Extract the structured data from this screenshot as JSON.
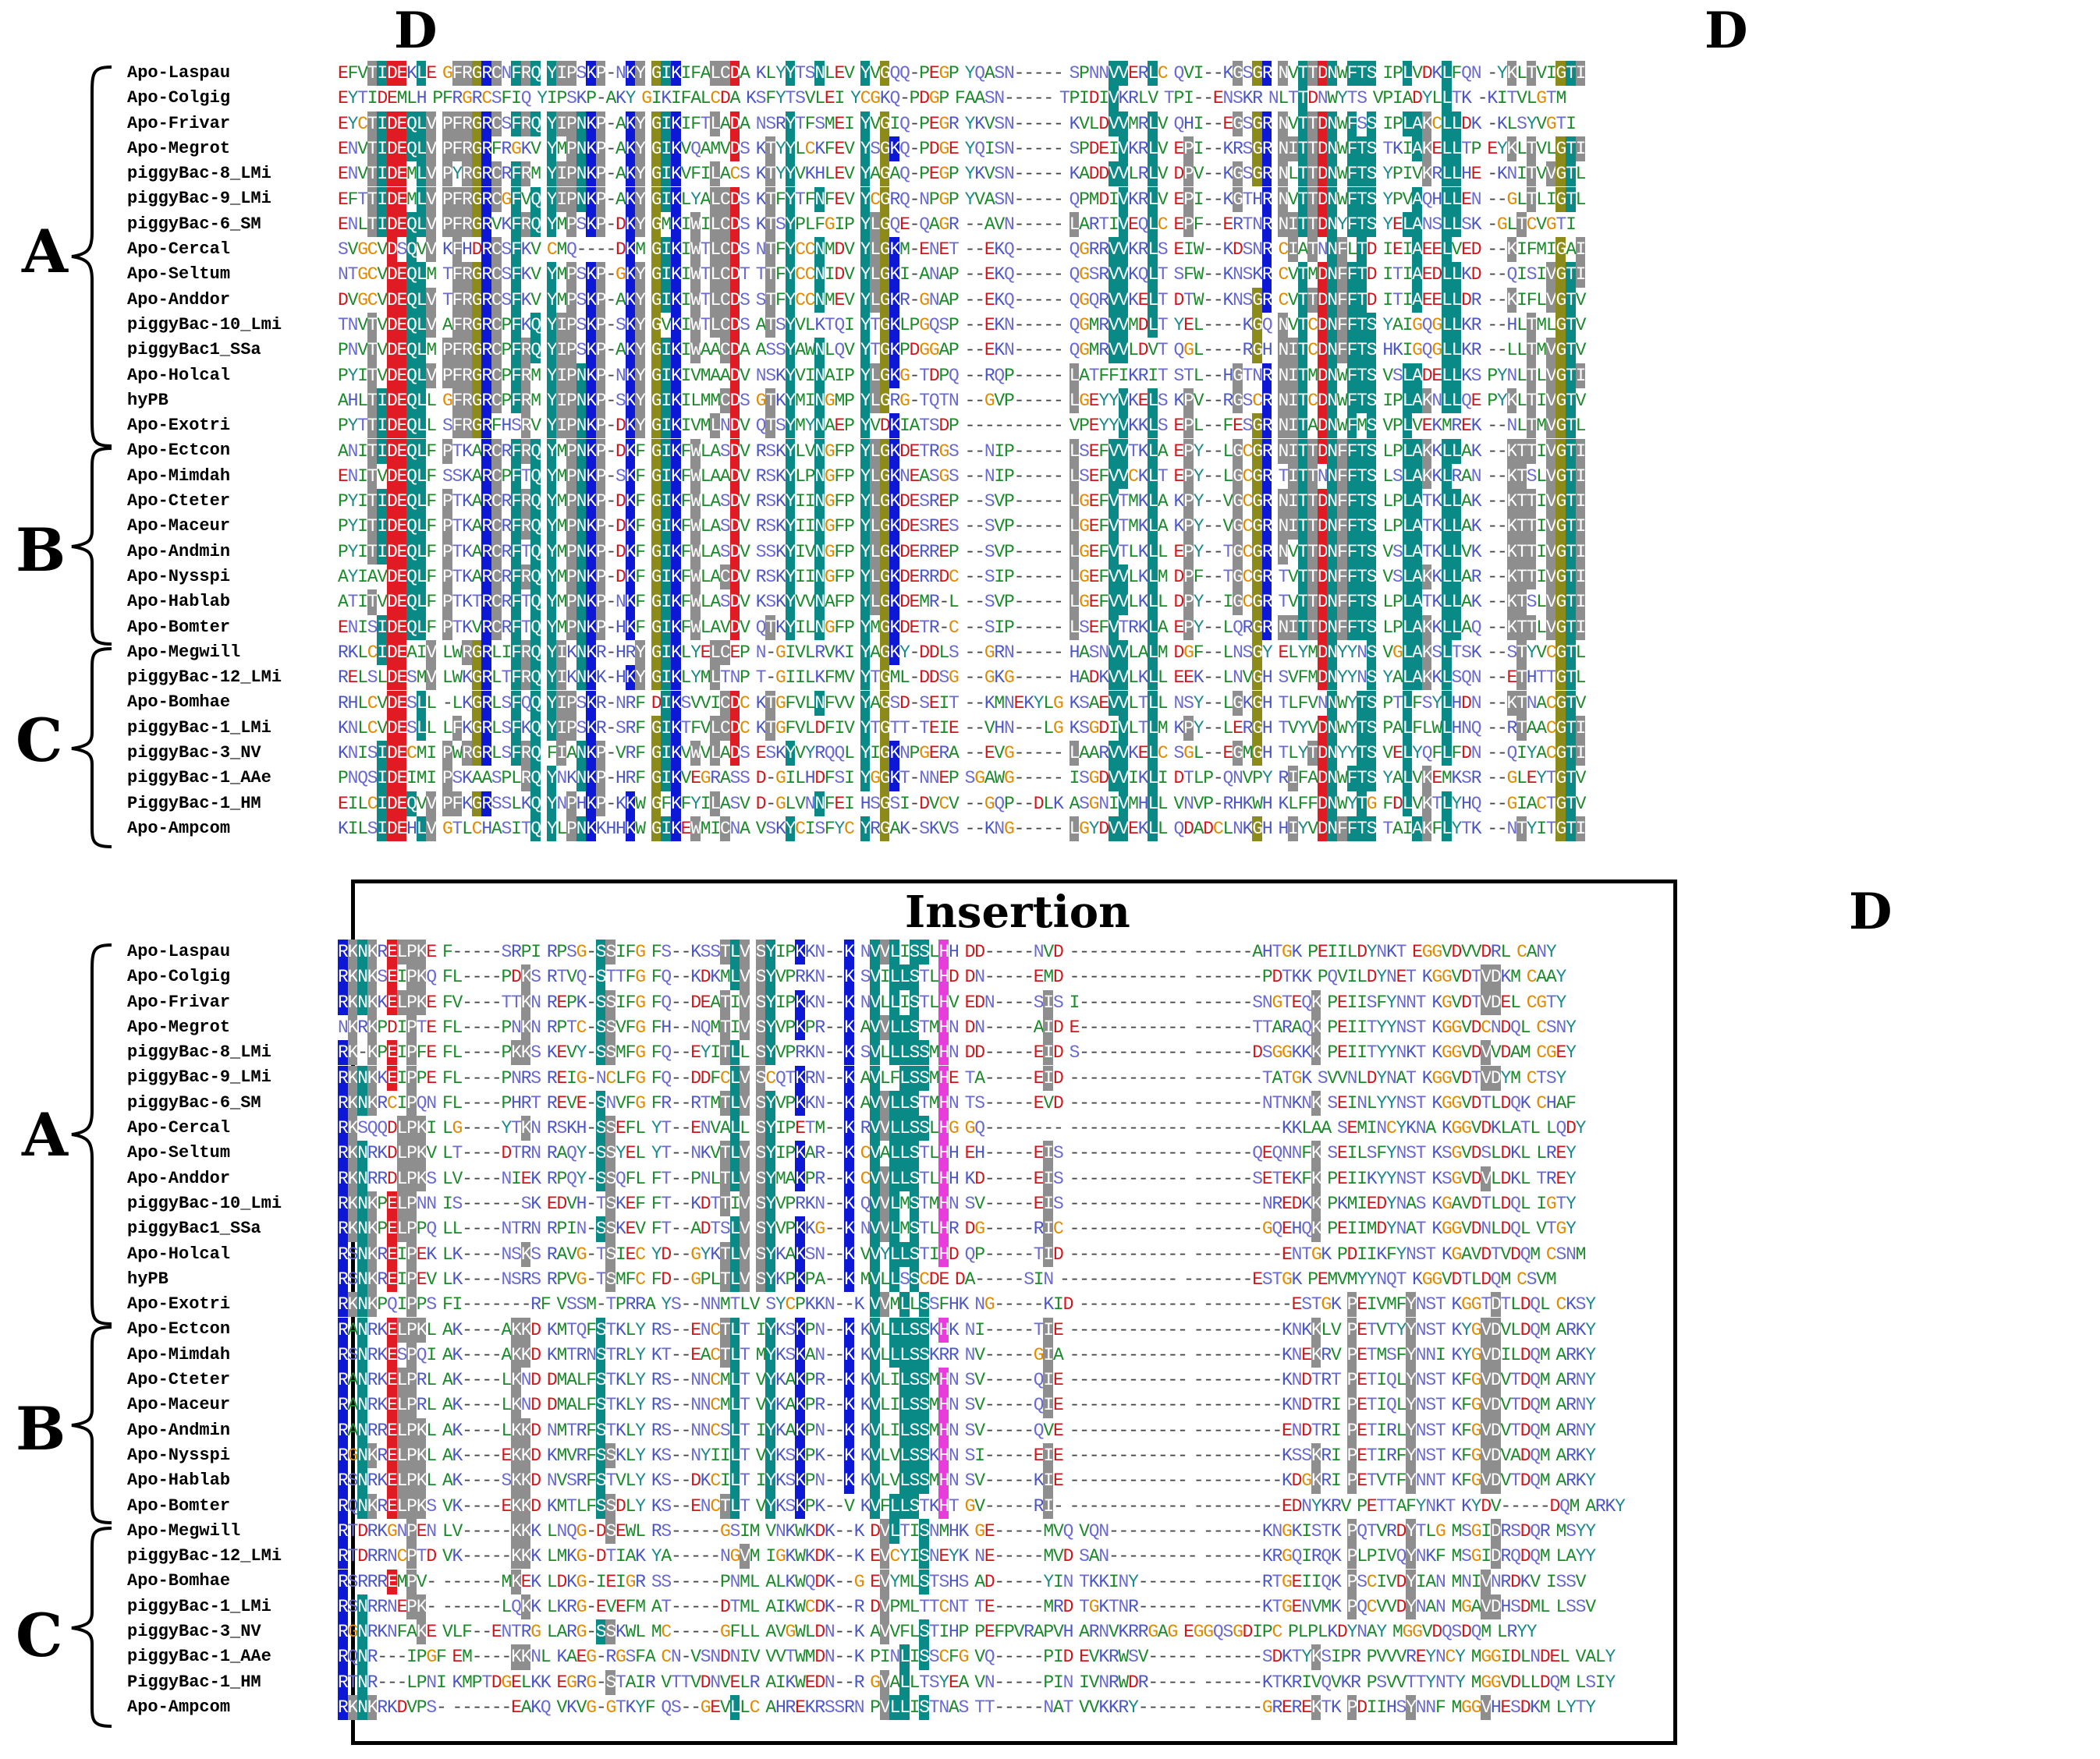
{
  "headers": {
    "domain_marks": [
      "D",
      "D",
      "D"
    ],
    "insertion_label": "Insertion"
  },
  "groups": [
    "A",
    "B",
    "C",
    "A",
    "B",
    "C"
  ],
  "species": [
    "Apo-Laspau",
    "Apo-Colgig",
    "Apo-Frivar",
    "Apo-Megrot",
    "piggyBac-8_LMi",
    "piggyBac-9_LMi",
    "piggyBac-6_SM",
    "Apo-Cercal",
    "Apo-Seltum",
    "Apo-Anddor",
    "piggyBac-10_Lmi",
    "piggyBac1_SSa",
    "Apo-Holcal",
    "hyPB",
    "Apo-Exotri",
    "Apo-Ectcon",
    "Apo-Mimdah",
    "Apo-Cteter",
    "Apo-Maceur",
    "Apo-Andmin",
    "Apo-Nysspi",
    "Apo-Hablab",
    "Apo-Bomter",
    "Apo-Megwill",
    "piggyBac-12_LMi",
    "Apo-Bomhae",
    "piggyBac-1_LMi",
    "piggyBac-3_NV",
    "piggyBac-1_AAe",
    "PiggyBac-1_HM",
    "Apo-Ampcom"
  ],
  "alignment_top": [
    "EFVTIDEKLE GFRGRCNFRQ YIPSKP-NKY GIKIFALCDA KLYYTSNLEV YVGQQ-PEGP YQASN----- SPNNVVERLC QVI--KGSGR NVTTDNWFTS IPLVDKLFQN -YKLTVIGTI",
    "EYTIDEMLH PFRGRCSFIQ YIPSKP-AKY GIKIFALCDA KSFYTSVLEI YCGKQ-PDGP FAASN----- TPIDIVKRLV TPI--ENSKR NLTTDNWYTS VPIADYLLTK -KITVLGTM",
    "EYCTIDEQLV PFRGRCSFRQ YIPNKP-AKY GIKIFTLADA NSRYTFSMEI YVGIQ-PEGR YKVSN----- KVLDVVMRLV QHI--EGSGR NVTTDNWFSS IPLAKCLLDK -KLSYVGTI",
    "ENVTIDEQLV PFRGRFRGKV YMPNKP-AKY GIKVQAMVDS KTYYLCKFEV YSGKQ-PDGE YQISN----- SPDEIVKRLV EPI--KRSGR NITTDNWFTS TKIAKELLTP EYKLTVLGTI",
    "ENVTIDEMLV PYRGRCRFRM YIPNKP-AKY GIKVFILACS KTYYVKHLEV YAGAQ-PEGP YKVSN----- KADDVVLRLV DPV--KGSGR NLTTDNWFTS YPIVKRLLHE -KNITVVGTL",
    "EFTTIDEMLV PFRGRCGFVQ YIPNKP-AKY GIKLYALCDS KTFYTFNFEV YCGRQ-NPGP YVASN----- QPMDIVKRLV EPI--KGTHR NVTTDNWFTS YPVAQHLLEN --GLTLIGTL",
    "ENLTIDEQLV PFRGRVKFRQ YMPSKP-DKY GMKIWILCDS KTSYPLFGIP YLGQE-QAGR --AVN----- LARTIVEQLC EPF--ERTNR NITTDNYFTS YELANSLLSK -GLTCVGTI",
    "SVGCVDSQVV KFHDRCSFKV CMQ----DKM GIKIWTLCDS NTFYCCNMDV YLGKM-ENET --EKQ----- QGRRVVKRLS EIW--KDSNR CIATNNFLTD IEIAEELVED --KIFMIGAI",
    "NTGCVDEQLM TFRGRCSFKV YMPSKP-GKY GIKIWTLCDT TTFYCCNIDV YLGKI-ANAP --EKQ----- QGSRVVKQLT SFW--KNSKR CVTMDNFFTD ITIAEDLLKD --QISIVGTI",
    "DVGCVDEQLV TFRGRCSFKV YMPSKP-AKY GIKIWTLCDS STFYCCNMEV YLGKR-GNAP --EKQ----- QGQRVVKELT DTW--KNSGR CVTTDNFFTD ITIAEELLDR --KIFLVGTV",
    "TNVTVDEQLV AFRGRCPFKQ YIPSKP-SKY GVKIWTLCDS ATSYVLKTQI YTGKLPGQSP --EKN----- QGMRVVMDLT YEL----KGQ NVTCDNFFTS YAIGQGLLKR --HLTMLGTV",
    "PNVTVDEQLM PFRGRCPFRQ YIPSKP-AKY GIKIWAACDA ASSYAWNLQV YTGKPDGGAP --EKN----- QGMRVVLDVT QGL----RGH NITCDNFFTS HKIGQGLLKR --LLTMVGTV",
    "PYITVDEQLV PFRGRCPFRM YIPNKP-NKY GIKIVMAADV NSKYVINAIP YLGKG-TDPQ --RQP----- LATFFIKRIT STL--HGTNR NITMDNWFTS VSLADELLKS PYNLTLVGTI",
    "AHLTIDEQLL GFRGRCPFRM YIPNKP-SKY GIKILMMCDS GTKYMINGMP YLGRG-TQTN --GVP----- LGEYYVKELS KPV--RGSCR NITCDNWFTS IPLAKNLLQE PYKLTIVGTV",
    "PYTTIDEQLL SFRGRFHSRV YIPNKP-DKY GIKIVMLNDV QTSYMYNAEP YVDKIATSDP ---------- VPEYYVKKLS EPL--FESGR NITADNWFMS VPLVEKMREK --NLTMVGTL",
    "ANITIDEQLF PTKARCRFRQ YMPNKP-DKF GIKFWLASDV RSKYLVNGFP YLGKDETRGS --NIP----- LSEFVVTKLA EPY--LGCGR NITTDNFFTS LPLAKKLLAK --KTTIVGTI",
    "ENITVDEQLF SSKARCPFTQ YMPNKP-SKF GIKFWLAADV RSKYLPNGFP YLGKNEASGS --NIP----- LSEFVVCKLT EPY--LGCGR TITTNNFFTS LSLAKKLRAN --KTSLVGTI",
    "PYITIDEQLF PTKARCRFRQ YMPNKP-DKF GIKFWLASDV RSKYIINGFP YLGKDESREP --SVP----- LGEFVTMKLA KPY--VGCGR NITTDNFFTS LPLATKLLAK --KTTIVGTI",
    "PYITIDEQLF PTKARCRFRQ YMPNKP-DKF GIKFWLASDV RSKYIINGFP YLGKDESRES --SVP----- LGEFVTMKLA KPY--VGCGR NITTDNFFTS LPLATKLLAK --KTTIVGTI",
    "PYITIDEQLF PTKARCRFTQ YMPNKP-DKF GIKFWLASDV SSKYIVNGFP YLGKDERREP --SVP----- LGEFVTLKLL EPY--TGCGR NVTTDNFFTS VSLATKLLVK --KTTIVGTI",
    "AYIAVDEQLF PTKARCRFRQ YMPNKP-DKF GIKFWLACDV RSKYIINGFP YLGKDERRDC --SIP----- LGEFVVLKLM DPF--TGCGR TVTTDNFFTS VSLAKKLLAR --KTTIVGTI",
    "ATITVDEQLF PTKTRCRFTQ YMPNKP-NKF GIKFWLASDV KSKYVVNAFP YLGKDEMR-L --SVP----- LGEFVVLKLL DPY--IGCGR TVTTDNFFTS LPLATKLLAK --KTSLVGTI",
    "ENISIDEQLF PTKVRCRFTQ YMPNKP-HKF GIKFWLAVDV QTKYILNGFP YMGKDETR-C --SIP----- LSEFVTRKLA EPY--LQRGR NITTDNFFTS LPLAKKLLAQ --KTTLVGTI",
    "RKLCIDEAIV LWRGRLIFRQ YIKNKR-HRY GIKLYELCEP N-GIVLRVKI YAGKY-DDLS --GRN----- HASNVVLALM DGF--LNSGY ELYMDNYYNS VGLAKSLTSK --STYVCGTL",
    "RELSLDESMV LWKGRLTFRQ YIKNKK-HKY GIKLYMLTNP T-GIILKFMV YTGML-DDSG --GKG----- HADKVVLKLL EEK--LNVGH SVFMDNYYNS YALAKKLSQN --ETHTTGTL",
    "RHLCVDESLL -LKGRLSFQQ YIPSKR-NRF DIKSVVICDC KTGFVLNFVV YAGSD-SEIT --KMNEKYLG KSAEVVLTLL NSY--LGKGH TLFVNNWYTS PTLFSYLHDN --KTNACGTV",
    "KNLCVDESLL LFKGRLSFKQ YIPSKR-SRF GIKTFVLCDC KTGFVLDFIV YTGTT-TEIE --VHN---LG KSGDIVLTLM KPY--LERGH TVYVDNWYTS PALFLWLHNQ --RTAACGTI",
    "KNISIDECMI PWRGRLSFRQ FIANKP-VRF GIKVWVLADS ESKYVYRQQL YIGKNPGERA --EVG----- LAARVVKELC SGL--EGMGH TLYTDNYYTS VELYQFLFDN --QIYACGTI",
    "PNQSIDEIMI PSKAASPLRQ YNKNKP-HRF GIKVEGRASS D-GILHDFSI YGGKT-NNEP SGAWG----- ISGDVVIKLI DTLP-QNVPY RIFADNWFTS YALVKEMKSR --GLEYTGTV",
    "EILCIDEQVV PFKGRSSLKQ YNPHKP-KKW GFKFYILASV D-GLVNNFEI HSGSI-DVCV --GQP--DLK ASGNIVMHLL VNVP-RHKWH KLFFDNWYTG FDLVKTLYHQ --GIACTGTV",
    "KILSIDEHLV GTLCHASITQ YLPNKKHHKW GIKEWMICNA VSKYCISFYC YRGAK-SKVS --KNG----- LGYDVVEKLL QDADCLNKGH HIYVDNFFTS TAIAKFLYTK --NTYITGTI"
  ],
  "alignment_bottom": [
    "RKNKRELPKE F-----SRPI RPSG-SSIFG FS--KSSTLV SYIPKKN--K NVVLISSLHH DD-----NVD ------------ ------AHTGK PEIILDYNKT EGGVDVVDRL CANY",
    "RKNKSEIPKQ FL----PDKS RTVQ-STTFG FQ--KDKMLV SYVPRKN--K SVILLSTLHD DN-----EMD ------------ -------PDTKK PQVILDYNET KGGVDTVDKM CAAY",
    "RKNKKELPKE FV----TTKN REPK-SSIFG FQ--DEATIV SYIPKKN--K NVLLISTLHV EDN----SIS I----------- ------SNGTEQK PEIISFYNNT KGVDTVDEL CGTY",
    "NKRKPDIPTE FL----PNKN RPTC-SSVFG FH--NQMTIV SYVPKPR--K AVVLLSTMHN DN-----AID E----------- ------TTARAQK PEIITYYNST KGGVDCNDQL CSNY",
    "RK-KPEIPFE FL----PKKS KEVY-SSMFG FQ--EYITLL SYVPRKN--K SVLLLSSMHN DD-----EID S----------- ------DSGGKKK PEIITYYNKT KGGVDVVDAM CGEY",
    "RKNKKEIPPE FL----PNRS REIG-NCLFG FQ--DDFCLV SCQTKRN--K AVLFLSSMHE TA-----EID ------------ -------TATGK SVVNLDYNAT KGGVDTVDYM CTSY",
    "RKNKRCIPQN FL----PHRT REVE-SNVFG FR--RTMTLV SYVPKKN--K AVVLLSTMHN TS-----EVD ------------ -------NTNKNK SEINLYYNST KGGVDTLDQK CHAF",
    "RKSQQDLPKI LG----YTKN RSKH-SSEFL YT--ENVALL SYIPETM--K RVVLLSSLHG GQ-------- ------------ ---------KKLAA SEMINCYKNA KGGVDKLATL LQDY",
    "RKNRKDLPKV LT----DTRN RAQY-SSYEL YT--NKVTLV SYIPKAR--K CVALLSTLHH EH-----EIS ------------ ------QEQNNFK SEILSFYNST KSGVDSLDKL LREY",
    "RKNRRDLPKS LV----NIEK RPQY-SSQFL FT--PNLTLV SYMAKPR--K CVVLLSTLHH KD-----EIS ------------ ------SETEKFK PEIIKYYNST KSGVDVLDKL TREY",
    "RKNKPELPNN IS------SK EDVH-TSKEF FT--KDTTIV SYVPRKN--K QVVLMSTMHN SV-----EIS ------------ -------NREDKK PKMIEDYNAS KGAVDTLDQL IGTY",
    "RKNKPELPPQ LL----NTRN RPIN-SSKEV FT--ADTSLV SYVPKKG--K NVVLMSTLHR DG-----RIC ------------ -------GQEHQK PEIIMDYNAT KGGVDNLDQL VTGY",
    "RSNKREIPEK LK----NSKS RAVG-TSIEC YD--GYKTLV SYKAKSN--K VVYLLSTIHD QP-----TID ------------ ---------ENTGK PDIIKFYNST KGAVDTVDQM CSNM",
    "RSNKREIPEV LK----NSRS RPVG-TSMFC FD--GPLTLV SYKPKPA--K MVLLSSCDE DA-----SIN ------------ -------ESTGK PEMVMYYNQT KGGVDTLDQM CSVM",
    "RKNKPQIPPS FI-------RF VSSM-TPRRA YS--NNMTLV SYCPKKN--K VVMLLSSFHK NG-----KID ------------ ---------ESTGK PEIVMFYNST KGGTDTLDQL CKSY",
    "RANRKELPKL AK----AKKD KMTQFSTKLY RS--ENCTLT IYKSKPN--K KVLLLSSKHK NI-----TIE ------------ ---------KNKKLV PETVTYYNST KYGVDVLDQM ARKY",
    "RSNRKESPQI AK----AKKD KMTRNSTRLY KT--EACTLT MYKSKAN--K KVLLLSSKRR NV-----GIA ------------ ---------KNEKRV PETMSFYNNI KYGVDILDQM ARKY",
    "RANRKELPRL AK----LKND DMALFSTKLY RS--NNCMLT VYKAKPR--K KVLILSSMHN SV-----QIE ------------ ---------KNDTRT PETIQLYNST KFGVDVTDQM ARNY",
    "RANRKELPRL AK----LKND DMALFSTKLY RS--NNCMLT VYKAKPR--K KVLILSSMHN SV-----QIE ------------ ---------KNDTRI PETIQLYNST KFGVDVTDQM ARNY",
    "RANRRELPKL AK----LKKD NMTRFSTKLY RS--NNCSLT IYKAKPN--K KVLILSSMHN SV-----QVE ------------ ---------ENDTRI PETIRLYNST KFGVDVTDQM ARNY",
    "RGNKRELPKL AK----EKKD KMVRFSSKLY KS--NYIILT VYKSKPK--K KVLVLSSKHN SI-----EIE ------------ ---------KSSKRI PETIRFYNST KFGVDVADQM ARKY",
    "RSNRKELPKL AK----SKKD NVSRFSTVLY KS--DKCILT IYKSKPN--K KVLVLSSMHN SV-----KIE ------------ ---------KDGKRI PETVTFYNNT KFGVDVTDQM ARKY",
    "RQNKRELPKS VK----EKKD KMTLFSSDLY KS--ENCTLT VYKSKPK--V KVFLLSTKHT GV-----RI- ------------ ---------EDNYKRV PETTAFYNKT KYDV-----DQM ARKY",
    "RTDRKGNPEN LV-----KKK LNQG-DSEWL RS-----GSIM VNKWKDK--K DVLTISNMHK GE-----MVQ VQN--------- ------KNGKISTK PQTVRDYTLG MSGIDRSDQR MSYY",
    "RTDRRNCPTD VK-----KKK LMKG-DTIAK YA-----NGVM IGKWKDK--K EVCYISNEYK NE-----MVD SAN--------- ------KRGQIRQK PLPIVQYNKF MSGIDRQDQM LAYY",
    "RSRRREMPV- ------MKEK LDKG-IEIGR SS-----PNML ALKWQDK--G EVYMLSTSHS AD-----YIN TKKINY------ ------RTGEIIQK PSCIVDYIAN MNIVNRDKV ISSV",
    "RSNRRNEPK- ------LQKK LKRG-EVEFM AT-----DTML AIKWCDK--R DVPMLTTCNT TE-----MRD TGKTNR------ ------KTGENVMK PQCVVDYNAN MGAVDHSDML LSSV",
    "RGNRKNFAKE VLF--ENTRG LARG-SSKWL MC-----GFLL AVGWLDN--K AVVFLSTIHP PEFPVRAPVH ARNVKRRGAG EGGQSGDIPC PLPLKDYNAY MGGVDQSDQM LRYY",
    "RQNR---IPGF EM----KKNL KAEG-RGSFA CN-VSNDNIV VVTWMDN--K PINLISSCFG VQ-----PID EVKRWSV----- ------SDKTYKSIPR PVVVREYNCY MGGIDLNDEL VALY",
    "RTNR---LPNI KMPTDGELKK EGRG-STAIR VTTVDNVELR AIKWEDN--R GVALLTSYEA VN-----PIN IVNRWDR----- ------KTKRIVQVKR PSVVTTYNTY MGGVDLLDQM LSIY",
    "RKNKRKDVPS- ------EAKQ VKVG-GTKYF QS--GEVLLC AHREKRSSRN PVLLISTNAS TT-----NAT VVKKRY------ ------GREREKTK PDIIHSYNNF MGGVHESDKM LYTY"
  ],
  "colors": {
    "teal": "#0a8a87",
    "olive": "#8c8a18",
    "gray": "#8e8e8e",
    "blue": "#0d18d6",
    "red": "#e01b24",
    "magenta": "#e83cdc",
    "cyan": "#25e5e5",
    "dark_red": "#8a0000"
  }
}
